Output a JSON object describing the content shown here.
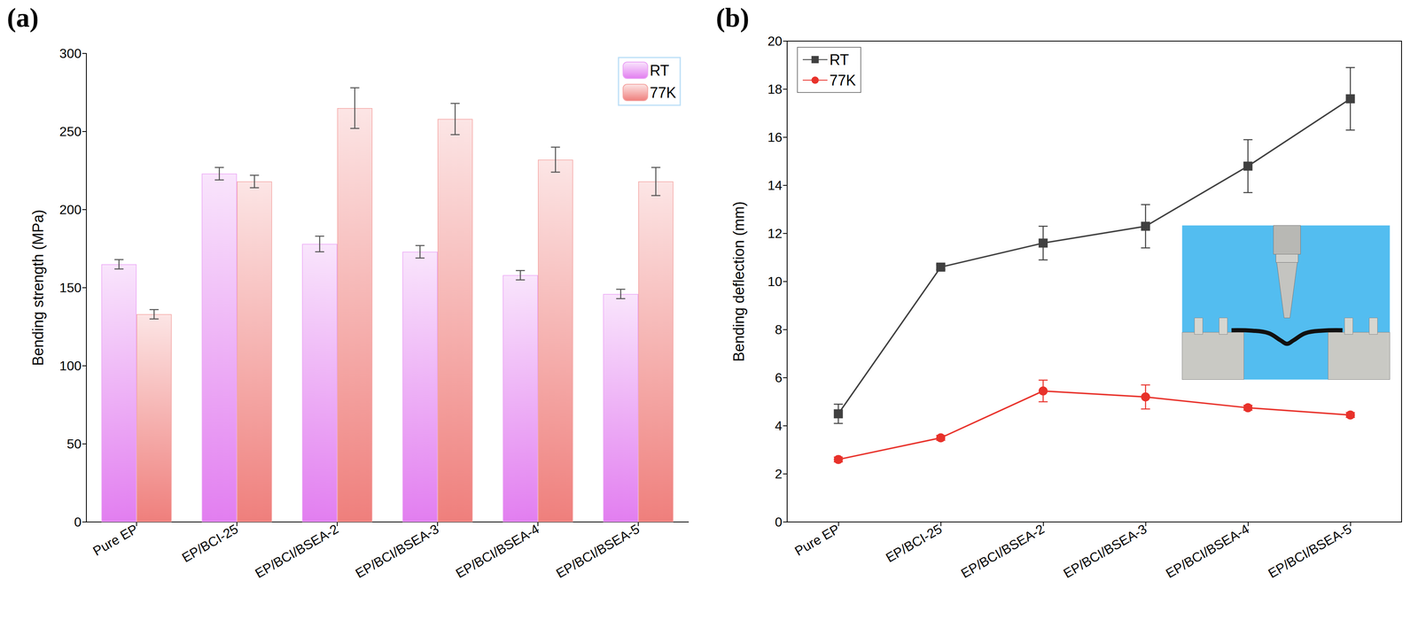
{
  "chart_data": [
    {
      "type": "bar",
      "title": "(a)",
      "ylabel": "Bending strength (MPa)",
      "categories": [
        "Pure EP",
        "EP/BCI-25",
        "EP/BCI/BSEA-2",
        "EP/BCI/BSEA-3",
        "EP/BCI/BSEA-4",
        "EP/BCI/BSEA-5"
      ],
      "series": [
        {
          "name": "RT",
          "color": "#e27ef0",
          "values": [
            165,
            223,
            178,
            173,
            158,
            146
          ],
          "errors": [
            3,
            4,
            5,
            4,
            3,
            3
          ]
        },
        {
          "name": "77K",
          "color": "#ef7f7c",
          "values": [
            133,
            218,
            265,
            258,
            232,
            218
          ],
          "errors": [
            3,
            4,
            13,
            10,
            8,
            9
          ]
        }
      ],
      "ylim": [
        0,
        300
      ],
      "yticks": [
        0,
        50,
        100,
        150,
        200,
        250,
        300
      ],
      "legend": "upper right"
    },
    {
      "type": "line",
      "title": "(b)",
      "ylabel": "Bending deflection (mm)",
      "categories": [
        "Pure EP",
        "EP/BCI-25",
        "EP/BCI/BSEA-2",
        "EP/BCI/BSEA-3",
        "EP/BCI/BSEA-4",
        "EP/BCI/BSEA-5"
      ],
      "series": [
        {
          "name": "RT",
          "color": "#404040",
          "marker": "square",
          "values": [
            4.5,
            10.6,
            11.6,
            12.3,
            14.8,
            17.6
          ],
          "errors": [
            0.4,
            0.1,
            0.7,
            0.9,
            1.1,
            1.3
          ]
        },
        {
          "name": "77K",
          "color": "#e8322b",
          "marker": "circle",
          "values": [
            2.6,
            3.5,
            5.45,
            5.2,
            4.75,
            4.45
          ],
          "errors": [
            0.1,
            0.1,
            0.45,
            0.5,
            0.1,
            0.1
          ]
        }
      ],
      "ylim": [
        0,
        20
      ],
      "yticks": [
        0,
        2,
        4,
        6,
        8,
        10,
        12,
        14,
        16,
        18,
        20
      ],
      "grid": false,
      "legend": "upper left"
    }
  ]
}
